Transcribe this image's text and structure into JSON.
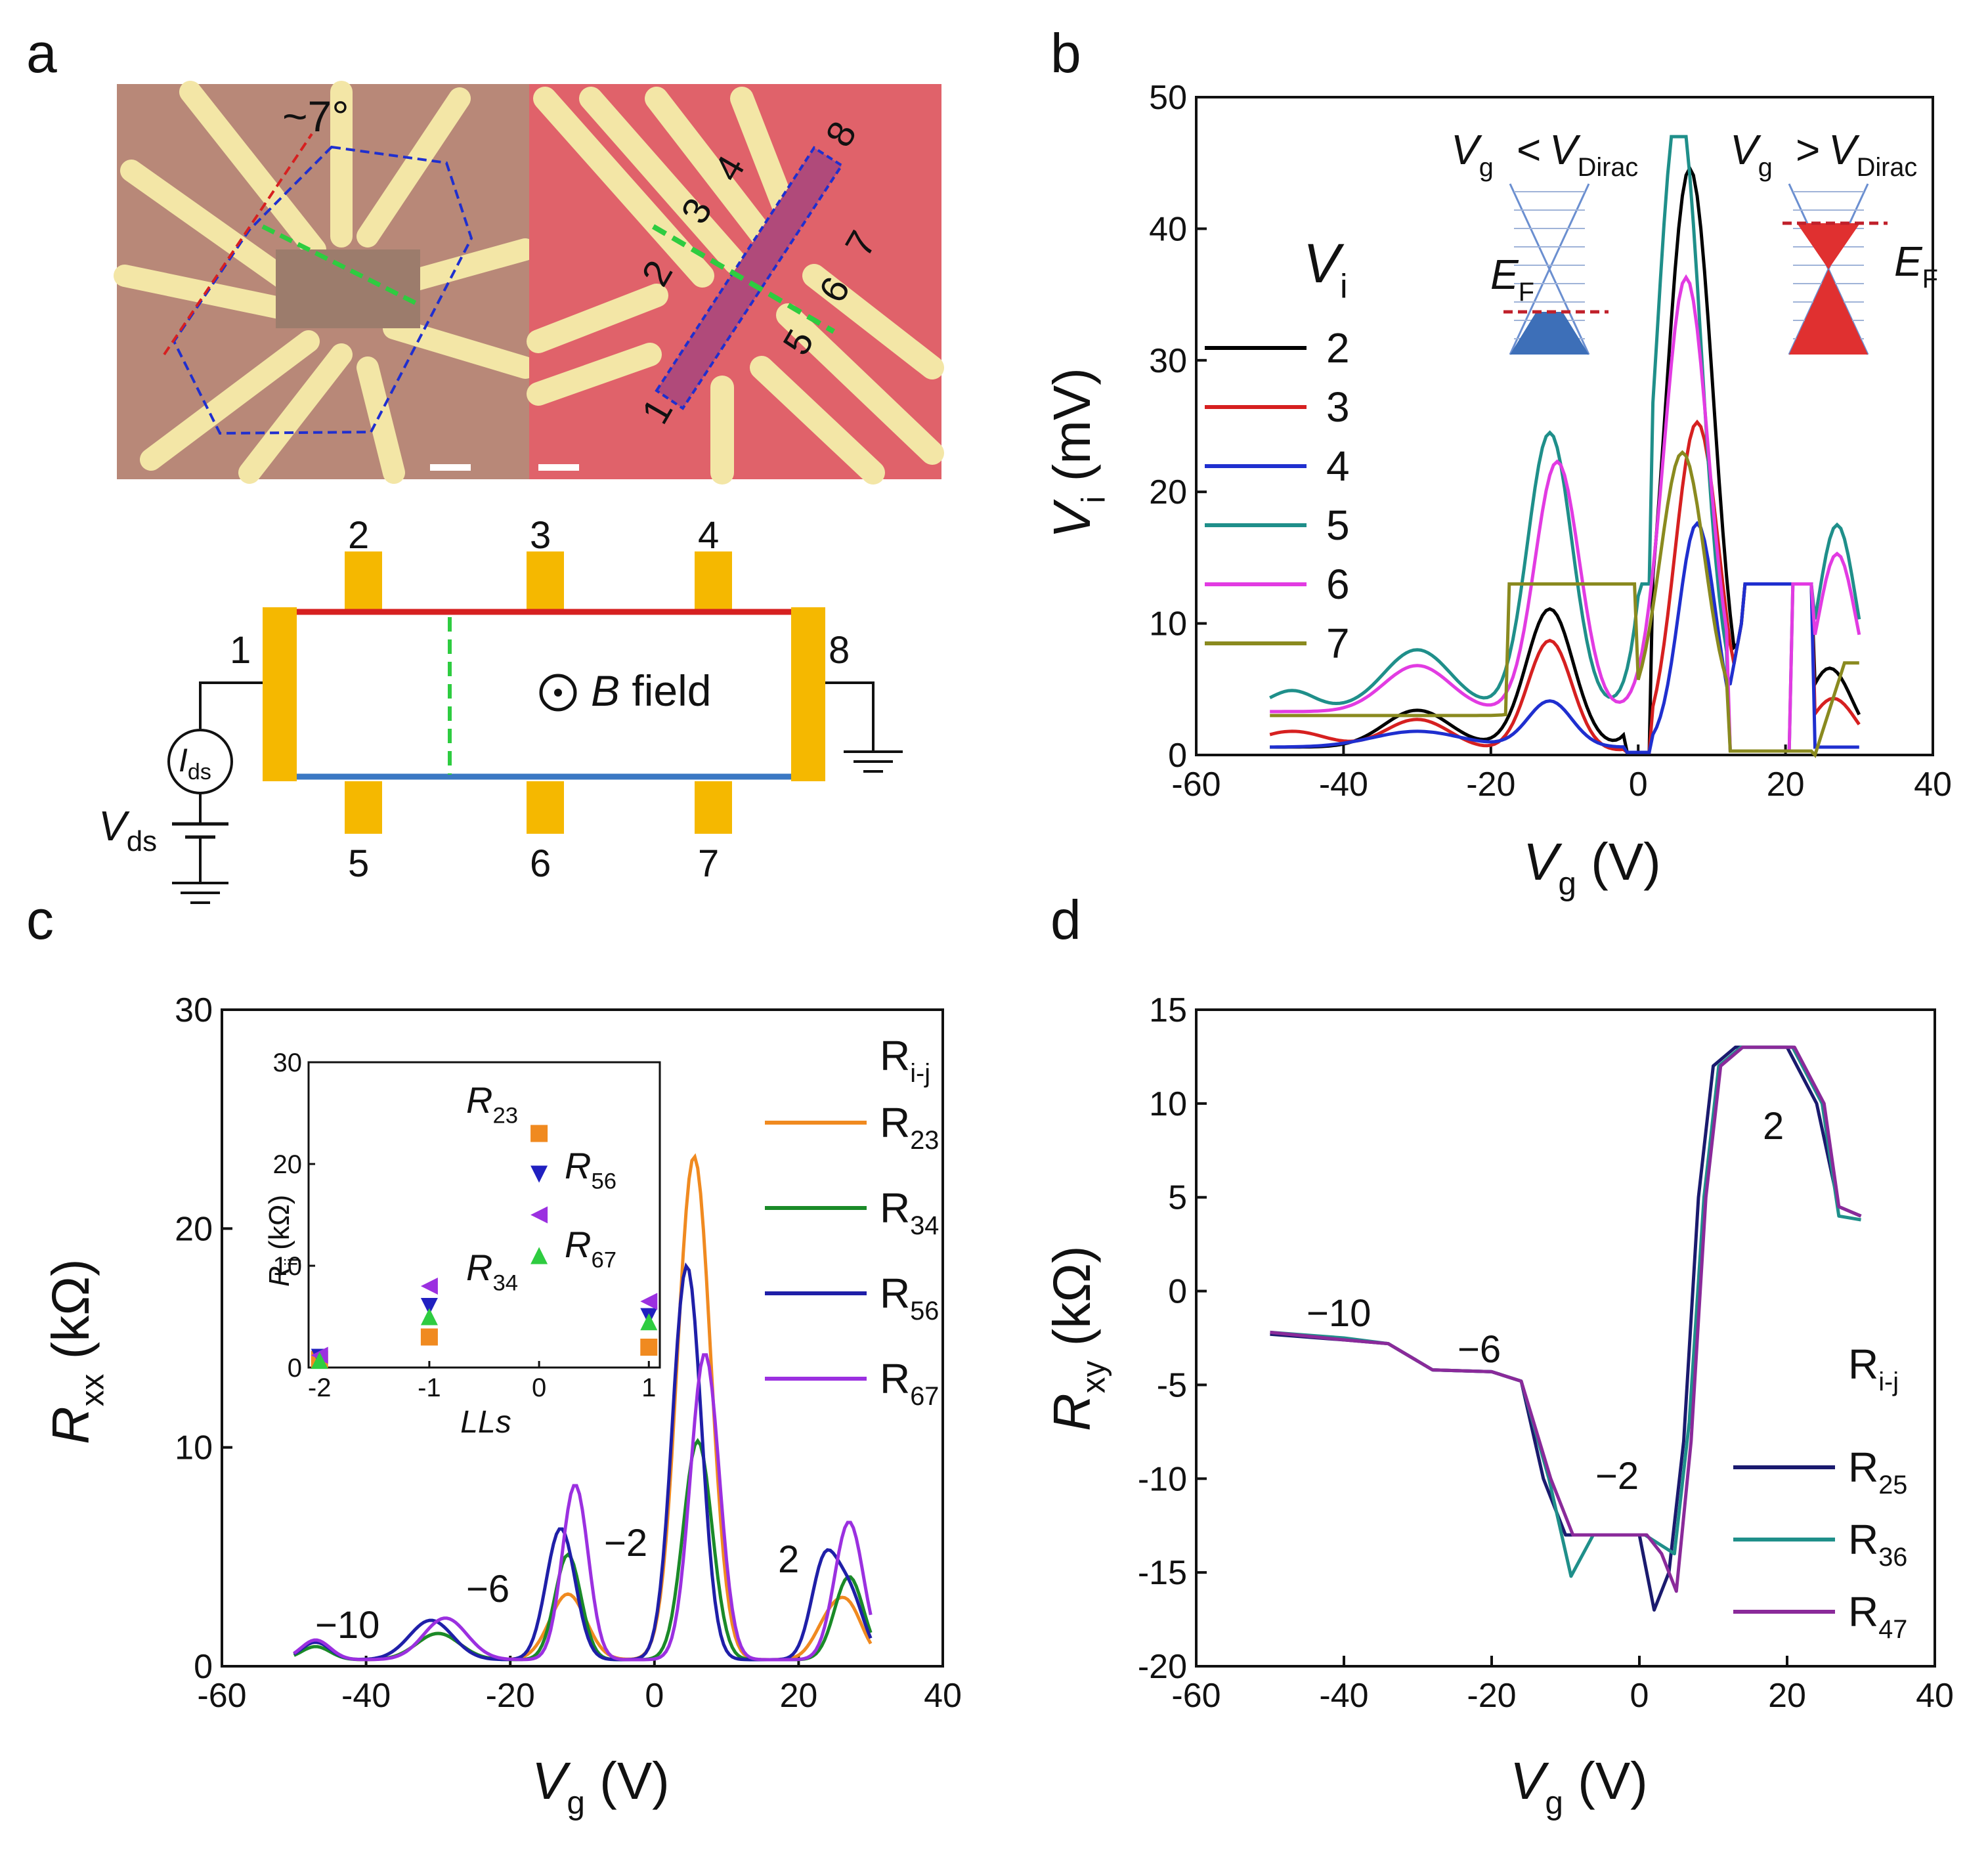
{
  "panels": {
    "a": {
      "label": "a",
      "angle_label": "~7°",
      "numbers": [
        "1",
        "2",
        "3",
        "4",
        "5",
        "6",
        "7",
        "8"
      ],
      "circuit": {
        "contacts_top": [
          "2",
          "3",
          "4"
        ],
        "contacts_bottom": [
          "5",
          "6",
          "7"
        ],
        "left": "1",
        "right": "8",
        "current": "I",
        "current_sub": "ds",
        "voltage": "V",
        "voltage_sub": "ds",
        "field": "B",
        "field_word": "field",
        "colors": {
          "top_edge": "#d62728",
          "bottom_edge": "#3b78c3",
          "contact": "#f5b800",
          "dash": "#2ecc40"
        }
      }
    },
    "b": {
      "label": "b"
    },
    "c": {
      "label": "c"
    },
    "d": {
      "label": "d"
    }
  },
  "chart_data": [
    {
      "id": "b",
      "type": "line",
      "xlabel": "V",
      "xlabel_sub": "g",
      "xunit": "(V)",
      "ylabel": "V",
      "ylabel_sub": "i",
      "yunit": "(mV)",
      "xlim": [
        -60,
        40
      ],
      "ylim": [
        0,
        50
      ],
      "xticks": [
        "-60",
        "-40",
        "-20",
        "0",
        "20",
        "40"
      ],
      "yticks": [
        "0",
        "10",
        "20",
        "30",
        "40",
        "50"
      ],
      "legend_title": "V",
      "legend_title_sub": "i",
      "insets": [
        {
          "text": "V",
          "sub": "g",
          "op": "<",
          "text2": "V",
          "sub2": "Dirac",
          "fermi": "E",
          "fermi_sub": "F",
          "fill": "#3d6fb8"
        },
        {
          "text": "V",
          "sub": "g",
          "op": ">",
          "text2": "V",
          "sub2": "Dirac",
          "fermi": "E",
          "fermi_sub": "F",
          "fill": "#e03030"
        }
      ],
      "series": [
        {
          "name": "2",
          "color": "#000000",
          "base": 0.6,
          "hi": 13,
          "peaks": [
            [
              -30,
              2.8,
              4.5
            ],
            [
              -12,
              10.5,
              3.2
            ],
            [
              7,
              44,
              3.2
            ],
            [
              26,
              6,
              3
            ]
          ]
        },
        {
          "name": "3",
          "color": "#d62020",
          "base": 0.3,
          "hi": 13,
          "peaks": [
            [
              -47,
              1.5,
              5
            ],
            [
              -30,
              2.4,
              4.5
            ],
            [
              -12,
              8.4,
              3
            ],
            [
              8,
              25,
              3
            ],
            [
              26.5,
              4,
              3
            ]
          ]
        },
        {
          "name": "4",
          "color": "#1f2fcf",
          "base": 0.6,
          "hi": 13,
          "peaks": [
            [
              -30,
              1.2,
              6
            ],
            [
              -12,
              3.5,
              3
            ],
            [
              8,
              17,
              2.5
            ]
          ]
        },
        {
          "name": "5",
          "color": "#1f8f8a",
          "base": 3.5,
          "hi": 13,
          "peaks": [
            [
              -47,
              1.4,
              3
            ],
            [
              -30,
              4.5,
              4.5
            ],
            [
              -12,
              21,
              3
            ],
            [
              5.5,
              46,
              3
            ],
            [
              27,
              14,
              2.5
            ]
          ]
        },
        {
          "name": "6",
          "color": "#e23be2",
          "base": 3.3,
          "hi": 13,
          "peaks": [
            [
              -30,
              3.5,
              4.5
            ],
            [
              -11,
              19,
              3
            ],
            [
              6.5,
              33,
              3
            ],
            [
              27,
              12,
              2.5
            ]
          ]
        },
        {
          "name": "7",
          "color": "#8a8a1f",
          "base": 3.0,
          "hi": 13,
          "peaks": [
            [
              -10,
              2.5,
              3
            ],
            [
              6,
              20,
              3
            ]
          ]
        }
      ]
    },
    {
      "id": "c",
      "type": "line",
      "xlabel": "V",
      "xlabel_sub": "g",
      "xunit": "(V)",
      "ylabel": "R",
      "ylabel_sub": "xx",
      "yunit": "(kΩ)",
      "xlim": [
        -60,
        40
      ],
      "ylim": [
        0,
        30
      ],
      "xticks": [
        "-60",
        "-40",
        "-20",
        "0",
        "20",
        "40"
      ],
      "yticks": [
        "0",
        "10",
        "20",
        "30"
      ],
      "legend_title": "R",
      "legend_title_sub": "i-j",
      "annotations": [
        "−10",
        "−6",
        "−2",
        "2"
      ],
      "series": [
        {
          "name": "R",
          "sub": "23",
          "color": "#f08a20",
          "peaks": [
            [
              -47,
              0.8,
              2
            ],
            [
              -30,
              1.2,
              3
            ],
            [
              -12,
              3,
              2.5
            ],
            [
              5.5,
              23,
              2.3
            ],
            [
              24,
              1.5,
              2
            ],
            [
              27,
              2.2,
              2
            ]
          ]
        },
        {
          "name": "R",
          "sub": "34",
          "color": "#1a8a28",
          "peaks": [
            [
              -47,
              0.6,
              2
            ],
            [
              -30,
              1.2,
              3
            ],
            [
              -12,
              4.8,
              1.8
            ],
            [
              6,
              10,
              2
            ],
            [
              27,
              3.8,
              2
            ]
          ]
        },
        {
          "name": "R",
          "sub": "56",
          "color": "#1f1fa8",
          "peaks": [
            [
              -47,
              0.8,
              2
            ],
            [
              -31,
              1.8,
              3
            ],
            [
              -13,
              6,
              2
            ],
            [
              4.5,
              18,
              2
            ],
            [
              23.5,
              4.2,
              1.8
            ],
            [
              27,
              3,
              2
            ]
          ]
        },
        {
          "name": "R",
          "sub": "67",
          "color": "#9b30e0",
          "peaks": [
            [
              -47,
              0.9,
              2
            ],
            [
              -29,
              1.9,
              3
            ],
            [
              -11,
              8,
              1.8
            ],
            [
              7,
              14,
              2
            ],
            [
              27,
              6.3,
              2
            ]
          ]
        }
      ],
      "inset": {
        "xlabel": "LLs",
        "ylabel": "R",
        "ylabel_sub": "ij",
        "yunit": "(kΩ)",
        "xlim": [
          -2.1,
          1.1
        ],
        "ylim": [
          0,
          30
        ],
        "xticks": [
          "-2",
          "-1",
          "0",
          "1"
        ],
        "yticks": [
          "0",
          "10",
          "20",
          "30"
        ],
        "labels": [
          {
            "name": "R",
            "sub": "23",
            "color": "#f08a20"
          },
          {
            "name": "R",
            "sub": "56",
            "color": "#2020c0"
          },
          {
            "name": "R",
            "sub": "67",
            "color": "#9b30e0"
          },
          {
            "name": "R",
            "sub": "34",
            "color": "#2ecc40"
          }
        ],
        "points": [
          {
            "series": "23",
            "marker": "square",
            "color": "#f08a20",
            "x": [
              -2,
              -1,
              0,
              1
            ],
            "y": [
              0.8,
              3,
              23,
              2
            ]
          },
          {
            "series": "56",
            "marker": "tri-down",
            "color": "#2020c0",
            "x": [
              -2,
              -1,
              0,
              1
            ],
            "y": [
              1,
              6,
              19,
              5
            ]
          },
          {
            "series": "67",
            "marker": "tri-left",
            "color": "#9b30e0",
            "x": [
              -2,
              -1,
              0,
              1
            ],
            "y": [
              1.2,
              8,
              15,
              6.5
            ]
          },
          {
            "series": "34",
            "marker": "tri-up",
            "color": "#2ecc40",
            "x": [
              -2,
              -1,
              0,
              1
            ],
            "y": [
              0.7,
              5,
              11,
              4.5
            ]
          }
        ]
      }
    },
    {
      "id": "d",
      "type": "line",
      "xlabel": "V",
      "xlabel_sub": "g",
      "xunit": "(V)",
      "ylabel": "R",
      "ylabel_sub": "xy",
      "yunit": "(kΩ)",
      "xlim": [
        -60,
        40
      ],
      "ylim": [
        -20,
        15
      ],
      "xticks": [
        "-60",
        "-40",
        "-20",
        "0",
        "20",
        "40"
      ],
      "yticks": [
        "-20",
        "-15",
        "-10",
        "-5",
        "0",
        "5",
        "10",
        "15"
      ],
      "legend_title": "R",
      "legend_title_sub": "i-j",
      "annotations": [
        "−10",
        "−6",
        "−2",
        "2"
      ],
      "series": [
        {
          "name": "R",
          "sub": "25",
          "color": "#1a1a6e",
          "shift": 0,
          "x": [
            -50,
            -40,
            -34,
            -28,
            -20,
            -16,
            -13,
            -10,
            -5,
            0,
            2,
            4,
            6,
            8,
            10,
            13,
            20,
            24,
            27,
            30
          ],
          "y": [
            -2.3,
            -2.6,
            -2.8,
            -4.2,
            -4.3,
            -4.8,
            -10,
            -13,
            -13,
            -13,
            -17,
            -15,
            -8,
            5,
            12,
            13,
            13,
            10,
            4.5,
            4
          ]
        },
        {
          "name": "R",
          "sub": "36",
          "color": "#1f8f8a",
          "shift": 1.5,
          "x": [
            -50,
            -40,
            -34,
            -28,
            -20,
            -16,
            -13,
            -10,
            -7,
            -5,
            0,
            2,
            4,
            6,
            8,
            10,
            13,
            20,
            24,
            27,
            30
          ],
          "y": [
            -2.2,
            -2.5,
            -2.8,
            -4.2,
            -4.3,
            -4.8,
            -10,
            -15.2,
            -13,
            -13,
            -13,
            -13.5,
            -14,
            -7,
            5,
            12,
            13,
            13,
            10,
            4,
            3.8
          ]
        },
        {
          "name": "R",
          "sub": "47",
          "color": "#8a2a9a",
          "shift": 2,
          "x": [
            -50,
            -40,
            -34,
            -28,
            -20,
            -16,
            -13,
            -10,
            -5,
            0,
            2,
            4,
            6,
            8,
            10,
            13,
            20,
            24,
            27,
            30
          ],
          "y": [
            -2.2,
            -2.6,
            -2.8,
            -4.2,
            -4.3,
            -4.8,
            -10,
            -13,
            -13,
            -13,
            -14,
            -16,
            -8,
            5,
            12,
            13,
            13,
            10,
            4.5,
            4
          ]
        }
      ]
    }
  ]
}
